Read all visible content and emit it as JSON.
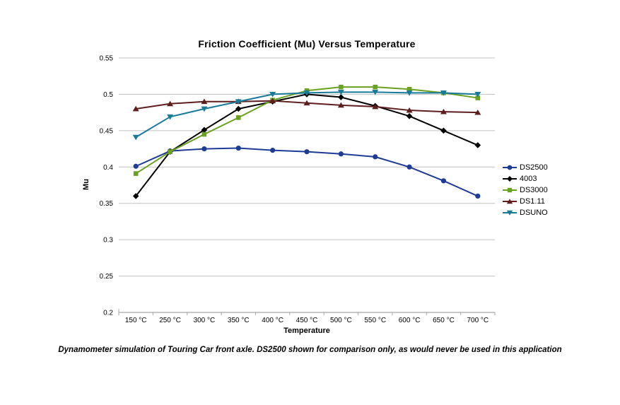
{
  "chart_data": {
    "type": "line",
    "title": "Friction Coefficient (Mu) Versus Temperature",
    "xlabel": "Temperature",
    "ylabel": "Mu",
    "ylim": [
      0.2,
      0.55
    ],
    "yticks": [
      0.55,
      0.5,
      0.45,
      0.4,
      0.35,
      0.3,
      0.25,
      0.2
    ],
    "ytick_labels": [
      "0.55",
      "0.5",
      "0.45",
      "0.4",
      "0.35",
      "0.3",
      "0.25",
      "0.2"
    ],
    "grid": "horizontal-only",
    "legend_position": "right",
    "categories": [
      "150 °C",
      "250 °C",
      "300 °C",
      "350 °C",
      "400 °C",
      "450 °C",
      "500 °C",
      "550 °C",
      "600 °C",
      "650 °C",
      "700 °C"
    ],
    "series": [
      {
        "name": "DS2500",
        "color": "#1E3C96",
        "marker": "circle",
        "values": [
          0.401,
          0.422,
          0.425,
          0.426,
          0.423,
          0.421,
          0.418,
          0.414,
          0.4,
          0.381,
          0.36
        ]
      },
      {
        "name": "4003",
        "color": "#000000",
        "marker": "diamond",
        "values": [
          0.36,
          0.421,
          0.451,
          0.48,
          0.49,
          0.5,
          0.496,
          0.484,
          0.47,
          0.45,
          0.43
        ]
      },
      {
        "name": "DS3000",
        "color": "#69A121",
        "marker": "square",
        "values": [
          0.391,
          0.421,
          0.445,
          0.468,
          0.492,
          0.505,
          0.51,
          0.51,
          0.507,
          0.502,
          0.495
        ]
      },
      {
        "name": "DS1.11",
        "color": "#5E1E1E",
        "marker": "triangle-up",
        "values": [
          0.48,
          0.487,
          0.49,
          0.49,
          0.491,
          0.488,
          0.485,
          0.483,
          0.478,
          0.476,
          0.475
        ]
      },
      {
        "name": "DSUNO",
        "color": "#1A7A99",
        "marker": "triangle-down",
        "values": [
          0.441,
          0.469,
          0.48,
          0.49,
          0.5,
          0.502,
          0.503,
          0.503,
          0.502,
          0.502,
          0.5
        ]
      }
    ],
    "colors": {
      "gridline": "#C0C0C0",
      "axis": "#A6A6A6",
      "text": "#000000",
      "background": "#FFFFFF"
    }
  },
  "footnote": {
    "text": "Dynamometer simulation of Touring Car front axle. DS2500 shown for comparison only, as would never be used in this application"
  }
}
